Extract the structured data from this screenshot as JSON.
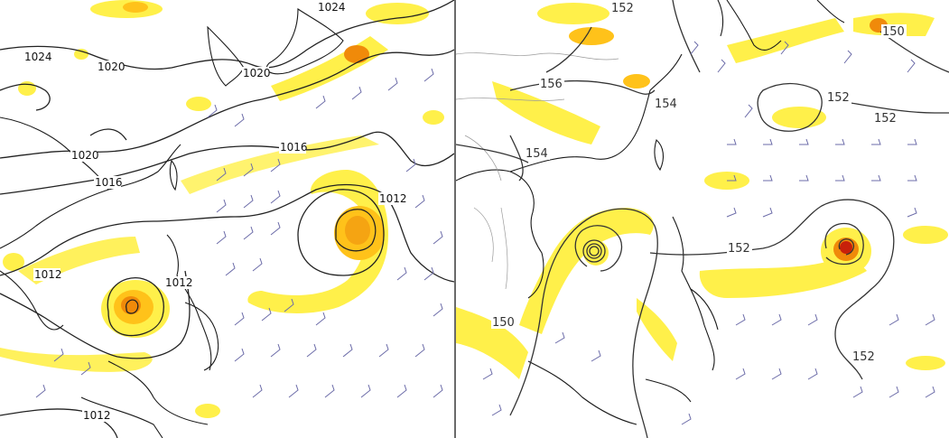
{
  "panels": [
    {
      "id": "left",
      "field": "mean sea level pressure",
      "contour_labels": [
        "1024",
        "1024",
        "1020",
        "1020",
        "1020",
        "1016",
        "1016",
        "1012",
        "1012",
        "1012",
        "1012"
      ]
    },
    {
      "id": "right",
      "field": "geopotential height",
      "contour_labels": [
        "152",
        "156",
        "154",
        "154",
        "152",
        "152",
        "150",
        "152",
        "150",
        "152"
      ]
    }
  ],
  "colors": {
    "shade_light": "#fff04a",
    "shade_mid": "#ffc21a",
    "shade_strong": "#f08a0a",
    "shade_core": "#c8200a",
    "contour": "#222222",
    "wind_barb": "#6b6ba8",
    "coastline": "#1a1a1a",
    "border": "#9a9a9a"
  }
}
